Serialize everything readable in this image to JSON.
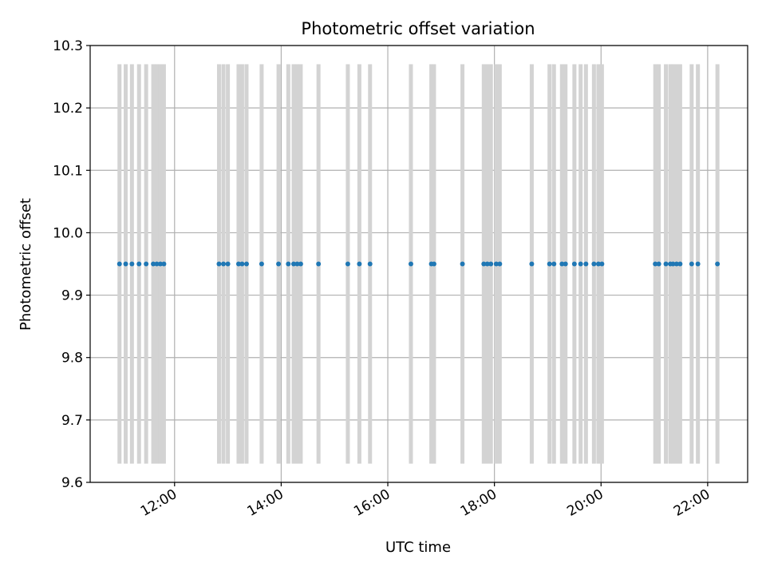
{
  "chart_data": {
    "type": "scatter",
    "title": "Photometric offset variation",
    "xlabel": "UTC time",
    "ylabel": "Photometric offset",
    "xlim": [
      "10:25",
      "22:45"
    ],
    "ylim": [
      9.6,
      10.3
    ],
    "grid": true,
    "x_ticks": [
      "12:00",
      "14:00",
      "16:00",
      "18:00",
      "20:00",
      "22:00"
    ],
    "y_ticks": [
      "9.6",
      "9.7",
      "9.8",
      "9.9",
      "10.0",
      "10.1",
      "10.2",
      "10.3"
    ],
    "colors": {
      "points": "#1f77b4",
      "bands": "#d3d3d3",
      "grid": "#b0b0b0"
    },
    "band_range": [
      9.63,
      10.27
    ],
    "observation_times": [
      "10:58",
      "11:05",
      "11:12",
      "11:20",
      "11:28",
      "11:36",
      "11:40",
      "11:44",
      "11:48",
      "12:50",
      "12:55",
      "13:00",
      "13:12",
      "13:16",
      "13:21",
      "13:38",
      "13:57",
      "14:08",
      "14:14",
      "14:18",
      "14:22",
      "14:42",
      "15:15",
      "15:28",
      "15:40",
      "16:26",
      "16:49",
      "16:52",
      "17:24",
      "17:48",
      "17:52",
      "17:56",
      "18:02",
      "18:06",
      "18:42",
      "19:02",
      "19:07",
      "19:16",
      "19:20",
      "19:30",
      "19:37",
      "19:43",
      "19:52",
      "19:57",
      "20:01",
      "21:01",
      "21:05",
      "21:13",
      "21:18",
      "21:21",
      "21:25",
      "21:29",
      "21:42",
      "21:49",
      "22:11"
    ],
    "series": [
      {
        "values": [
          9.95,
          9.95,
          9.95,
          9.95,
          9.95,
          9.95,
          9.95,
          9.95,
          9.95,
          9.95,
          9.95,
          9.95,
          9.95,
          9.95,
          9.95,
          9.95,
          9.95,
          9.95,
          9.95,
          9.95,
          9.95,
          9.95,
          9.95,
          9.95,
          9.95,
          9.95,
          9.95,
          9.95,
          9.95,
          9.95,
          9.95,
          9.95,
          9.95,
          9.95,
          9.95,
          9.95,
          9.95,
          9.95,
          9.95,
          9.95,
          9.95,
          9.95,
          9.95,
          9.95,
          9.95,
          9.95,
          9.95,
          9.95,
          9.95,
          9.95,
          9.95,
          9.95,
          9.95,
          9.95,
          9.95
        ]
      }
    ]
  }
}
